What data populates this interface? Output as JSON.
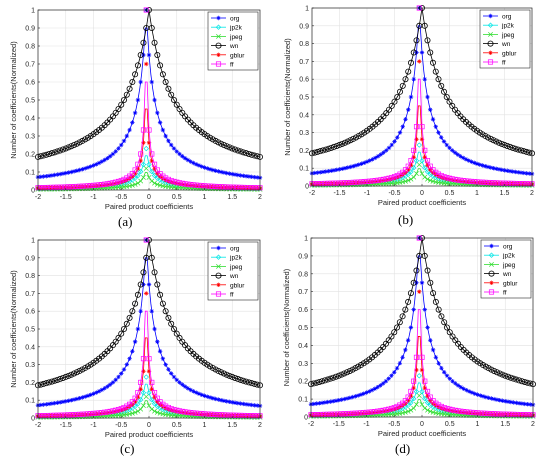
{
  "chart_data": [
    {
      "type": "line",
      "caption": "(a)",
      "xlabel": "Paired product coefficients",
      "ylabel": "Number of coefficients(Normalized)",
      "xlim": [
        -2,
        2
      ],
      "ylim": [
        0,
        1
      ],
      "xticks": [
        "-2",
        "-1.5",
        "-1",
        "-0.5",
        "0",
        "0.5",
        "1",
        "1.5",
        "2"
      ],
      "yticks": [
        "0",
        "0.1",
        "0.2",
        "0.3",
        "0.4",
        "0.5",
        "0.6",
        "0.7",
        "0.8",
        "0.9",
        "1"
      ],
      "grid": true,
      "legend_position": "top-right",
      "series": [
        {
          "name": "org",
          "color": "#0000ff",
          "marker": "star",
          "center": -0.05,
          "peak": 1.0,
          "width": 0.15
        },
        {
          "name": "jp2k",
          "color": "#00e5e5",
          "marker": "diamond",
          "center": -0.05,
          "peak": 0.23,
          "width": 0.08
        },
        {
          "name": "jpeg",
          "color": "#33dd33",
          "marker": "cross",
          "center": -0.05,
          "peak": 0.12,
          "width": 0.07
        },
        {
          "name": "wn",
          "color": "#000000",
          "marker": "circle",
          "center": 0.0,
          "peak": 1.0,
          "width": 0.45
        },
        {
          "name": "gblur",
          "color": "#ff0000",
          "marker": "star",
          "center": -0.05,
          "peak": 0.7,
          "width": 0.03
        },
        {
          "name": "ff",
          "color": "#ff00ff",
          "marker": "square",
          "center": -0.05,
          "peak": 1.0,
          "width": 0.025
        }
      ]
    },
    {
      "type": "line",
      "caption": "(b)",
      "xlabel": "Paired product coefficients",
      "ylabel": "Number of coefficients(Normalized)",
      "xlim": [
        -2,
        2
      ],
      "ylim": [
        0,
        1
      ],
      "xticks": [
        "-2",
        "-1.5",
        "-1",
        "-0.5",
        "0",
        "0.5",
        "1",
        "1.5",
        "2"
      ],
      "yticks": [
        "0",
        "0.1",
        "0.2",
        "0.3",
        "0.4",
        "0.5",
        "0.6",
        "0.7",
        "0.8",
        "0.9",
        "1"
      ],
      "grid": true,
      "legend_position": "top-right",
      "series": [
        {
          "name": "org",
          "color": "#0000ff",
          "marker": "star",
          "center": -0.05,
          "peak": 1.0,
          "width": 0.15
        },
        {
          "name": "jp2k",
          "color": "#00e5e5",
          "marker": "diamond",
          "center": -0.05,
          "peak": 0.23,
          "width": 0.08
        },
        {
          "name": "jpeg",
          "color": "#33dd33",
          "marker": "cross",
          "center": -0.05,
          "peak": 0.12,
          "width": 0.07
        },
        {
          "name": "wn",
          "color": "#000000",
          "marker": "circle",
          "center": 0.0,
          "peak": 1.0,
          "width": 0.45
        },
        {
          "name": "gblur",
          "color": "#ff0000",
          "marker": "star",
          "center": -0.05,
          "peak": 0.7,
          "width": 0.03
        },
        {
          "name": "ff",
          "color": "#ff00ff",
          "marker": "square",
          "center": -0.05,
          "peak": 1.0,
          "width": 0.025
        }
      ]
    },
    {
      "type": "line",
      "caption": "(c)",
      "xlabel": "Paired product coefficients",
      "ylabel": "Number of coefficients(Normalized)",
      "xlim": [
        -2,
        2
      ],
      "ylim": [
        0,
        1
      ],
      "xticks": [
        "-2",
        "-1.5",
        "-1",
        "-0.5",
        "0",
        "0.5",
        "1",
        "1.5",
        "2"
      ],
      "yticks": [
        "0",
        "0.1",
        "0.2",
        "0.3",
        "0.4",
        "0.5",
        "0.6",
        "0.7",
        "0.8",
        "0.9",
        "1"
      ],
      "grid": true,
      "legend_position": "top-right",
      "series": [
        {
          "name": "org",
          "color": "#0000ff",
          "marker": "star",
          "center": -0.05,
          "peak": 1.0,
          "width": 0.15
        },
        {
          "name": "jp2k",
          "color": "#00e5e5",
          "marker": "diamond",
          "center": -0.05,
          "peak": 0.23,
          "width": 0.08
        },
        {
          "name": "jpeg",
          "color": "#33dd33",
          "marker": "cross",
          "center": -0.05,
          "peak": 0.12,
          "width": 0.07
        },
        {
          "name": "wn",
          "color": "#000000",
          "marker": "circle",
          "center": 0.0,
          "peak": 1.0,
          "width": 0.45
        },
        {
          "name": "gblur",
          "color": "#ff0000",
          "marker": "star",
          "center": -0.05,
          "peak": 0.7,
          "width": 0.03
        },
        {
          "name": "ff",
          "color": "#ff00ff",
          "marker": "square",
          "center": -0.05,
          "peak": 1.0,
          "width": 0.025
        }
      ]
    },
    {
      "type": "line",
      "caption": "(d)",
      "xlabel": "Paired product coefficients",
      "ylabel": "Number of coefficients(Normalized)",
      "xlim": [
        -2,
        2
      ],
      "ylim": [
        0,
        1
      ],
      "xticks": [
        "-2",
        "-1.5",
        "-1",
        "-0.5",
        "0",
        "0.5",
        "1",
        "1.5",
        "2"
      ],
      "yticks": [
        "0",
        "0.1",
        "0.2",
        "0.3",
        "0.4",
        "0.5",
        "0.6",
        "0.7",
        "0.8",
        "0.9",
        "1"
      ],
      "grid": true,
      "legend_position": "top-right",
      "series": [
        {
          "name": "org",
          "color": "#0000ff",
          "marker": "star",
          "center": -0.05,
          "peak": 1.0,
          "width": 0.15
        },
        {
          "name": "jp2k",
          "color": "#00e5e5",
          "marker": "diamond",
          "center": -0.05,
          "peak": 0.23,
          "width": 0.08
        },
        {
          "name": "jpeg",
          "color": "#33dd33",
          "marker": "cross",
          "center": -0.05,
          "peak": 0.12,
          "width": 0.07
        },
        {
          "name": "wn",
          "color": "#000000",
          "marker": "circle",
          "center": 0.0,
          "peak": 1.0,
          "width": 0.45
        },
        {
          "name": "gblur",
          "color": "#ff0000",
          "marker": "star",
          "center": -0.05,
          "peak": 0.7,
          "width": 0.03
        },
        {
          "name": "ff",
          "color": "#ff00ff",
          "marker": "square",
          "center": -0.05,
          "peak": 1.0,
          "width": 0.025
        }
      ]
    }
  ]
}
